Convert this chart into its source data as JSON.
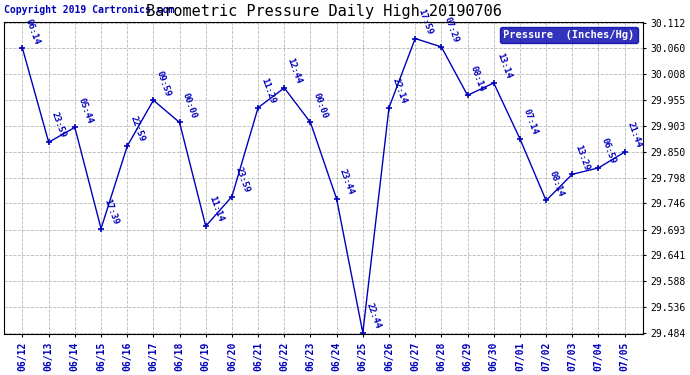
{
  "title": "Barometric Pressure Daily High 20190706",
  "copyright": "Copyright 2019 Cartronics.com",
  "legend_label": "Pressure  (Inches/Hg)",
  "x_labels": [
    "06/12",
    "06/13",
    "06/14",
    "06/15",
    "06/16",
    "06/17",
    "06/18",
    "06/19",
    "06/20",
    "06/21",
    "06/22",
    "06/23",
    "06/24",
    "06/25",
    "06/26",
    "06/27",
    "06/28",
    "06/29",
    "06/30",
    "07/01",
    "07/02",
    "07/03",
    "07/04",
    "07/05"
  ],
  "y_values": [
    30.06,
    29.87,
    29.9,
    29.695,
    29.862,
    29.955,
    29.91,
    29.7,
    29.76,
    29.94,
    29.98,
    29.91,
    29.755,
    29.484,
    29.94,
    30.08,
    30.063,
    29.965,
    29.99,
    29.877,
    29.752,
    29.805,
    29.818,
    29.85
  ],
  "point_labels": [
    "06:14",
    "23:59",
    "05:44",
    "17:39",
    "22:59",
    "09:59",
    "00:00",
    "11:14",
    "23:59",
    "11:29",
    "12:44",
    "00:00",
    "23:44",
    "22:44",
    "22:14",
    "17:59",
    "07:29",
    "08:14",
    "13:14",
    "07:14",
    "08:14",
    "13:29",
    "06:59",
    "21:44"
  ],
  "line_color": "#0000BB",
  "marker_color": "#0000BB",
  "bg_color": "#ffffff",
  "plot_bg_color": "#ffffff",
  "grid_color": "#b0b0b0",
  "title_color": "#000000",
  "label_color": "#0000BB",
  "copyright_color": "#0000BB",
  "ylim_min": 29.484,
  "ylim_max": 30.112,
  "yticks": [
    29.484,
    29.536,
    29.588,
    29.641,
    29.693,
    29.746,
    29.798,
    29.85,
    29.903,
    29.955,
    30.008,
    30.06,
    30.112
  ],
  "legend_bg": "#0000AA",
  "legend_text_color": "#ffffff",
  "title_fontsize": 11,
  "tick_fontsize": 7,
  "label_fontsize": 6.5,
  "copyright_fontsize": 7
}
